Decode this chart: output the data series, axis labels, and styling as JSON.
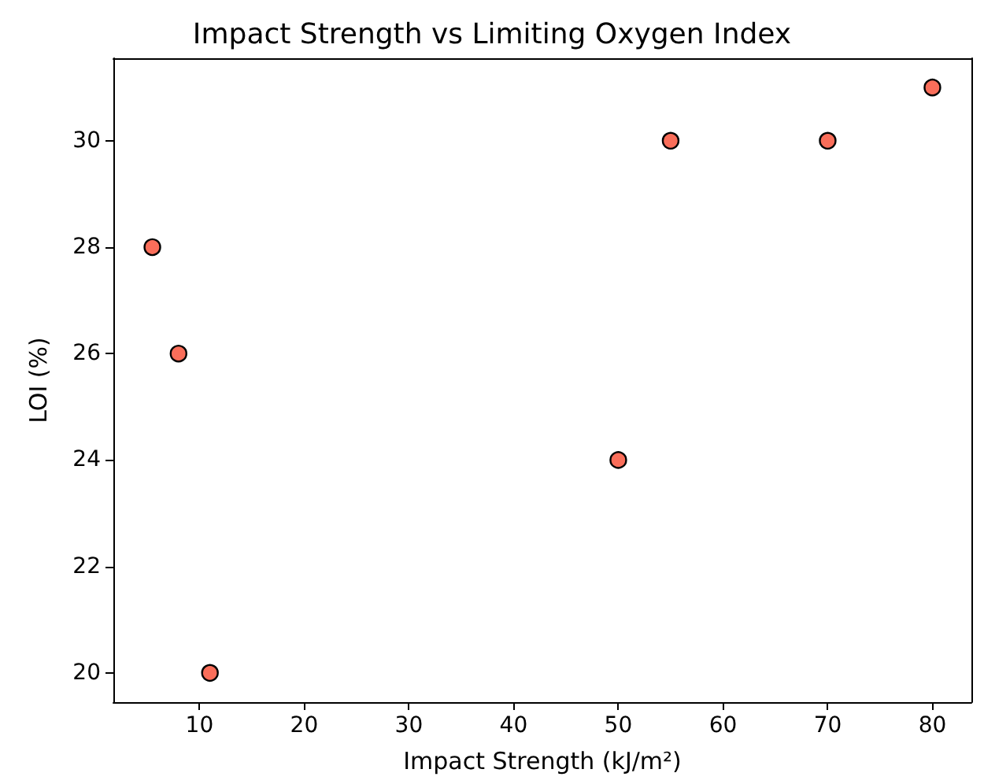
{
  "chart_data": {
    "type": "scatter",
    "title": "Impact Strength vs Limiting Oxygen Index",
    "xlabel": "Impact Strength (kJ/m²)",
    "ylabel": "LOI (%)",
    "x": [
      5.5,
      8,
      11,
      50,
      55,
      70,
      80
    ],
    "values": [
      28,
      26,
      20,
      24,
      30,
      30,
      31
    ],
    "color": "#fa6e5a",
    "marker": "circle",
    "xlim": [
      1.775,
      83.725
    ],
    "xticks": [
      10,
      20,
      30,
      40,
      50,
      60,
      70,
      80
    ],
    "ylim": [
      19.45,
      31.55
    ],
    "yticks": [
      20,
      22,
      24,
      26,
      28,
      30
    ],
    "grid": false
  }
}
